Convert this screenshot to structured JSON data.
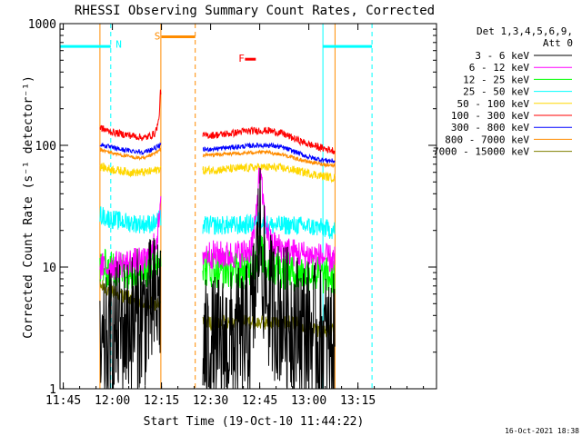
{
  "chart_data": {
    "type": "line",
    "title": "RHESSI Observing Summary Count Rates, Corrected",
    "xlabel": "Start Time (19-Oct-10 11:44:22)",
    "ylabel": "Corrected Count Rate (s⁻¹ detector⁻¹)",
    "yscale": "log",
    "ylim": [
      1,
      1000
    ],
    "xlim_min": [
      0,
      115
    ],
    "x_ticks": [
      {
        "t": 1,
        "label": "11:45"
      },
      {
        "t": 16,
        "label": "12:00"
      },
      {
        "t": 31,
        "label": "12:15"
      },
      {
        "t": 46,
        "label": "12:30"
      },
      {
        "t": 61,
        "label": "12:45"
      },
      {
        "t": 76,
        "label": "13:00"
      },
      {
        "t": 91,
        "label": "13:15"
      }
    ],
    "y_ticks": [
      {
        "v": 1,
        "label": "1"
      },
      {
        "v": 10,
        "label": "10"
      },
      {
        "v": 100,
        "label": "100"
      },
      {
        "v": 1000,
        "label": "1000"
      }
    ],
    "legend_header": [
      "Det 1,3,4,5,6,9,",
      "Att 0"
    ],
    "legend_placement": "right",
    "footer": "16-Oct-2021 18:38",
    "segments": [
      {
        "from": 12.2,
        "to": 30.8
      },
      {
        "from": 43.6,
        "to": 84.0
      }
    ],
    "series": [
      {
        "name": "3 - 6 keV",
        "color": "#000000",
        "noise": 0.6,
        "points": [
          [
            12.2,
            1.5
          ],
          [
            15,
            2.5
          ],
          [
            18,
            3
          ],
          [
            22,
            3.5
          ],
          [
            26,
            4
          ],
          [
            29,
            5
          ],
          [
            30.8,
            6
          ],
          [
            43.6,
            2
          ],
          [
            48,
            2.2
          ],
          [
            52,
            2.4
          ],
          [
            56,
            2.6
          ],
          [
            58,
            3
          ],
          [
            59.5,
            6
          ],
          [
            60.5,
            15
          ],
          [
            61,
            22
          ],
          [
            61.6,
            15
          ],
          [
            62.5,
            7
          ],
          [
            64,
            5
          ],
          [
            68,
            4
          ],
          [
            72,
            3.5
          ],
          [
            76,
            3
          ],
          [
            80,
            2.5
          ],
          [
            84,
            2.2
          ]
        ]
      },
      {
        "name": "6 - 12 keV",
        "color": "#ff00ff",
        "noise": 0.12,
        "points": [
          [
            12.2,
            10
          ],
          [
            15,
            10
          ],
          [
            18,
            10.5
          ],
          [
            22,
            11
          ],
          [
            26,
            11
          ],
          [
            28,
            13
          ],
          [
            29.5,
            17
          ],
          [
            30.4,
            25
          ],
          [
            30.8,
            30
          ],
          [
            43.6,
            13
          ],
          [
            48,
            12.5
          ],
          [
            52,
            12.5
          ],
          [
            56,
            13
          ],
          [
            58,
            14
          ],
          [
            59.5,
            20
          ],
          [
            60.5,
            45
          ],
          [
            61,
            58
          ],
          [
            61.6,
            45
          ],
          [
            62.5,
            26
          ],
          [
            64,
            16
          ],
          [
            68,
            14
          ],
          [
            72,
            13
          ],
          [
            76,
            12.5
          ],
          [
            80,
            12
          ],
          [
            84,
            11.5
          ]
        ]
      },
      {
        "name": "12 - 25 keV",
        "color": "#00ff00",
        "noise": 0.16,
        "points": [
          [
            12.2,
            10
          ],
          [
            15,
            9.5
          ],
          [
            18,
            9.5
          ],
          [
            22,
            9.5
          ],
          [
            26,
            9.5
          ],
          [
            28,
            10
          ],
          [
            30,
            12
          ],
          [
            30.8,
            14
          ],
          [
            43.6,
            10
          ],
          [
            48,
            9.5
          ],
          [
            52,
            9.5
          ],
          [
            56,
            9.5
          ],
          [
            58,
            10
          ],
          [
            59.5,
            11
          ],
          [
            60.5,
            13
          ],
          [
            61,
            14
          ],
          [
            61.6,
            13
          ],
          [
            62.5,
            11
          ],
          [
            64,
            10
          ],
          [
            68,
            9.5
          ],
          [
            72,
            9
          ],
          [
            76,
            9
          ],
          [
            80,
            8.5
          ],
          [
            84,
            8
          ]
        ]
      },
      {
        "name": "25 - 50 keV",
        "color": "#00ffff",
        "noise": 0.08,
        "points": [
          [
            12.2,
            27
          ],
          [
            15,
            25
          ],
          [
            18,
            24
          ],
          [
            22,
            23
          ],
          [
            26,
            22.5
          ],
          [
            29,
            23
          ],
          [
            30.8,
            25
          ],
          [
            43.6,
            22
          ],
          [
            48,
            22
          ],
          [
            52,
            22
          ],
          [
            56,
            22
          ],
          [
            58,
            22.5
          ],
          [
            60.5,
            24
          ],
          [
            61,
            25
          ],
          [
            62,
            23
          ],
          [
            64,
            22
          ],
          [
            68,
            22
          ],
          [
            72,
            22
          ],
          [
            76,
            21.5
          ],
          [
            80,
            21
          ],
          [
            84,
            20
          ]
        ]
      },
      {
        "name": "50 - 100 keV",
        "color": "#ffd700",
        "noise": 0.035,
        "points": [
          [
            12.2,
            67
          ],
          [
            15,
            64
          ],
          [
            18,
            62
          ],
          [
            22,
            60
          ],
          [
            26,
            60
          ],
          [
            29,
            62
          ],
          [
            30.8,
            65
          ],
          [
            43.6,
            62
          ],
          [
            48,
            63
          ],
          [
            52,
            64
          ],
          [
            56,
            65
          ],
          [
            60,
            66
          ],
          [
            64,
            66
          ],
          [
            68,
            65
          ],
          [
            72,
            62
          ],
          [
            76,
            59
          ],
          [
            80,
            56
          ],
          [
            84,
            54
          ]
        ]
      },
      {
        "name": "100 - 300 keV",
        "color": "#ff0000",
        "noise": 0.03,
        "points": [
          [
            12.2,
            140
          ],
          [
            15,
            130
          ],
          [
            18,
            125
          ],
          [
            22,
            120
          ],
          [
            26,
            115
          ],
          [
            29,
            125
          ],
          [
            30.2,
            160
          ],
          [
            30.6,
            260
          ],
          [
            30.8,
            280
          ],
          [
            43.6,
            120
          ],
          [
            48,
            122
          ],
          [
            52,
            125
          ],
          [
            56,
            130
          ],
          [
            60,
            132
          ],
          [
            64,
            132
          ],
          [
            68,
            125
          ],
          [
            72,
            112
          ],
          [
            76,
            102
          ],
          [
            80,
            95
          ],
          [
            84,
            90
          ]
        ]
      },
      {
        "name": "300 - 800 keV",
        "color": "#0000ff",
        "noise": 0.02,
        "points": [
          [
            12.2,
            102
          ],
          [
            15,
            97
          ],
          [
            18,
            93
          ],
          [
            22,
            90
          ],
          [
            26,
            88
          ],
          [
            29,
            95
          ],
          [
            30.8,
            100
          ],
          [
            43.6,
            92
          ],
          [
            48,
            94
          ],
          [
            52,
            96
          ],
          [
            56,
            98
          ],
          [
            60,
            100
          ],
          [
            64,
            100
          ],
          [
            68,
            96
          ],
          [
            72,
            88
          ],
          [
            76,
            80
          ],
          [
            80,
            76
          ],
          [
            84,
            74
          ]
        ]
      },
      {
        "name": "800 - 7000 keV",
        "color": "#ff8c00",
        "noise": 0.015,
        "points": [
          [
            12.2,
            92
          ],
          [
            15,
            88
          ],
          [
            18,
            84
          ],
          [
            22,
            80
          ],
          [
            26,
            78
          ],
          [
            29,
            86
          ],
          [
            30.8,
            92
          ],
          [
            43.6,
            83
          ],
          [
            48,
            84
          ],
          [
            52,
            85
          ],
          [
            56,
            86
          ],
          [
            60,
            88
          ],
          [
            64,
            87
          ],
          [
            68,
            84
          ],
          [
            72,
            78
          ],
          [
            76,
            73
          ],
          [
            80,
            70
          ],
          [
            84,
            68
          ]
        ]
      },
      {
        "name": "7000 - 15000 keV",
        "color": "#808000",
        "noise": 0.06,
        "points": [
          [
            12.2,
            7
          ],
          [
            15,
            6.5
          ],
          [
            18,
            6
          ],
          [
            22,
            5.5
          ],
          [
            26,
            5
          ],
          [
            29,
            5
          ],
          [
            30.8,
            5
          ],
          [
            43.6,
            3.5
          ],
          [
            48,
            3.5
          ],
          [
            52,
            3.6
          ],
          [
            56,
            3.6
          ],
          [
            60,
            3.5
          ],
          [
            64,
            3.5
          ],
          [
            68,
            3.5
          ],
          [
            72,
            3.5
          ],
          [
            76,
            3.2
          ],
          [
            80,
            3
          ],
          [
            84,
            3
          ]
        ]
      }
    ],
    "vertical_lines": [
      {
        "t": 12.2,
        "color": "#ff8c00",
        "style": "solid"
      },
      {
        "t": 30.8,
        "color": "#ff8c00",
        "style": "solid"
      },
      {
        "t": 84.0,
        "color": "#ff8c00",
        "style": "solid"
      },
      {
        "t": 15.5,
        "color": "#00ffff",
        "style": "dashed"
      },
      {
        "t": 80.3,
        "color": "#00ffff",
        "style": "solid"
      },
      {
        "t": 95.3,
        "color": "#00ffff",
        "style": "dashed"
      },
      {
        "t": 41.3,
        "color": "#ff8c00",
        "style": "dashed"
      }
    ],
    "flag_bars": [
      {
        "from": 0,
        "to": 15.5,
        "y": 650,
        "color": "#00ffff",
        "label": ""
      },
      {
        "from": 80.3,
        "to": 95.3,
        "y": 650,
        "color": "#00ffff",
        "label": ""
      },
      {
        "from": 31.0,
        "to": 41.3,
        "y": 780,
        "color": "#ff8c00",
        "label": ""
      },
      {
        "from": 56.5,
        "to": 59.8,
        "y": 510,
        "color": "#ff0000",
        "label": ""
      }
    ],
    "annotations": [
      {
        "text": "N",
        "t": 17.0,
        "y": 680,
        "color": "#00ffff"
      },
      {
        "text": "S",
        "t": 28.8,
        "y": 790,
        "color": "#ff8c00"
      },
      {
        "text": "F",
        "t": 54.5,
        "y": 520,
        "color": "#ff0000"
      }
    ]
  }
}
